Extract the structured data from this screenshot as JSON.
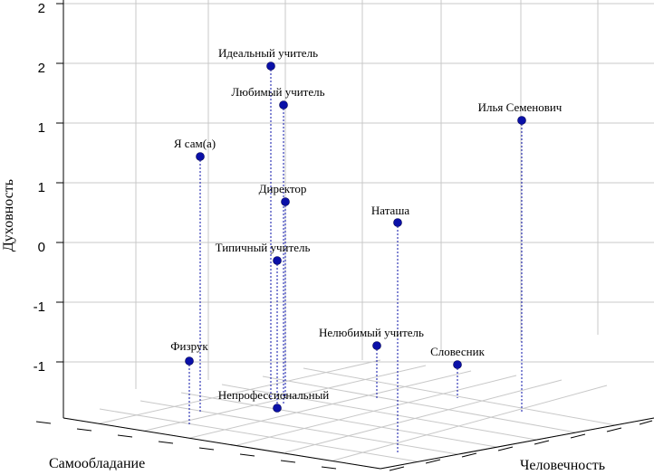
{
  "chart_data": {
    "type": "scatter",
    "subtype": "3d-scatter-with-drop-lines",
    "title": "",
    "axes": {
      "x": {
        "label": "Самообладание"
      },
      "y": {
        "label": "Человечность"
      },
      "z": {
        "label": "Духовность",
        "tick_labels": [
          "2",
          "2",
          "1",
          "1",
          "0",
          "-1",
          "-1"
        ]
      }
    },
    "grid": true,
    "point_color": "#0a10a8",
    "points": [
      {
        "name": "Идеальный учитель"
      },
      {
        "name": "Любимый учитель"
      },
      {
        "name": "Я сам(а)"
      },
      {
        "name": "Директор"
      },
      {
        "name": "Типичный учитель"
      },
      {
        "name": "Илья Семенович"
      },
      {
        "name": "Наташа"
      },
      {
        "name": "Нелюбимый учитель"
      },
      {
        "name": "Словесник"
      },
      {
        "name": "Физрук"
      },
      {
        "name": "Непрофессиональный"
      }
    ]
  }
}
